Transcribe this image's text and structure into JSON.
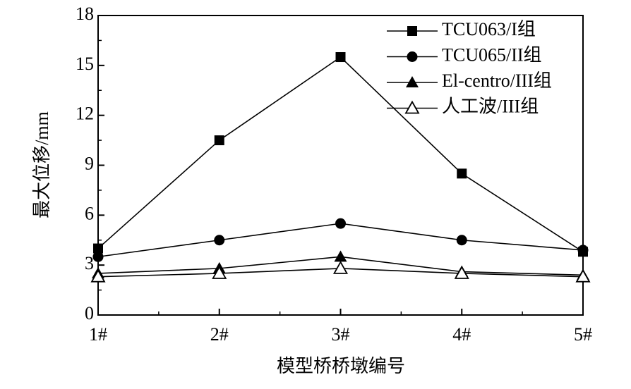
{
  "chart_data": {
    "type": "line",
    "xlabel": "模型桥桥墩编号",
    "ylabel": "最大位移/mm",
    "categories": [
      "1#",
      "2#",
      "3#",
      "4#",
      "5#"
    ],
    "ylim": [
      0,
      18
    ],
    "yticks": [
      0,
      3,
      6,
      9,
      12,
      15,
      18
    ],
    "legend": "upper right",
    "series": [
      {
        "name": "TCU063/I组",
        "color": "#000000",
        "marker": "square",
        "values": [
          4.0,
          10.5,
          15.5,
          8.5,
          3.8
        ]
      },
      {
        "name": "TCU065/II组",
        "color": "#000000",
        "marker": "circle",
        "values": [
          3.5,
          4.5,
          5.5,
          4.5,
          3.9
        ]
      },
      {
        "name": "El-centro/III组",
        "color": "#000000",
        "marker": "triangle",
        "values": [
          2.5,
          2.8,
          3.5,
          2.6,
          2.4
        ]
      },
      {
        "name": "人工波/III组",
        "color": "#000000",
        "marker": "triangle-open",
        "values": [
          2.3,
          2.5,
          2.8,
          2.5,
          2.3
        ]
      }
    ]
  }
}
